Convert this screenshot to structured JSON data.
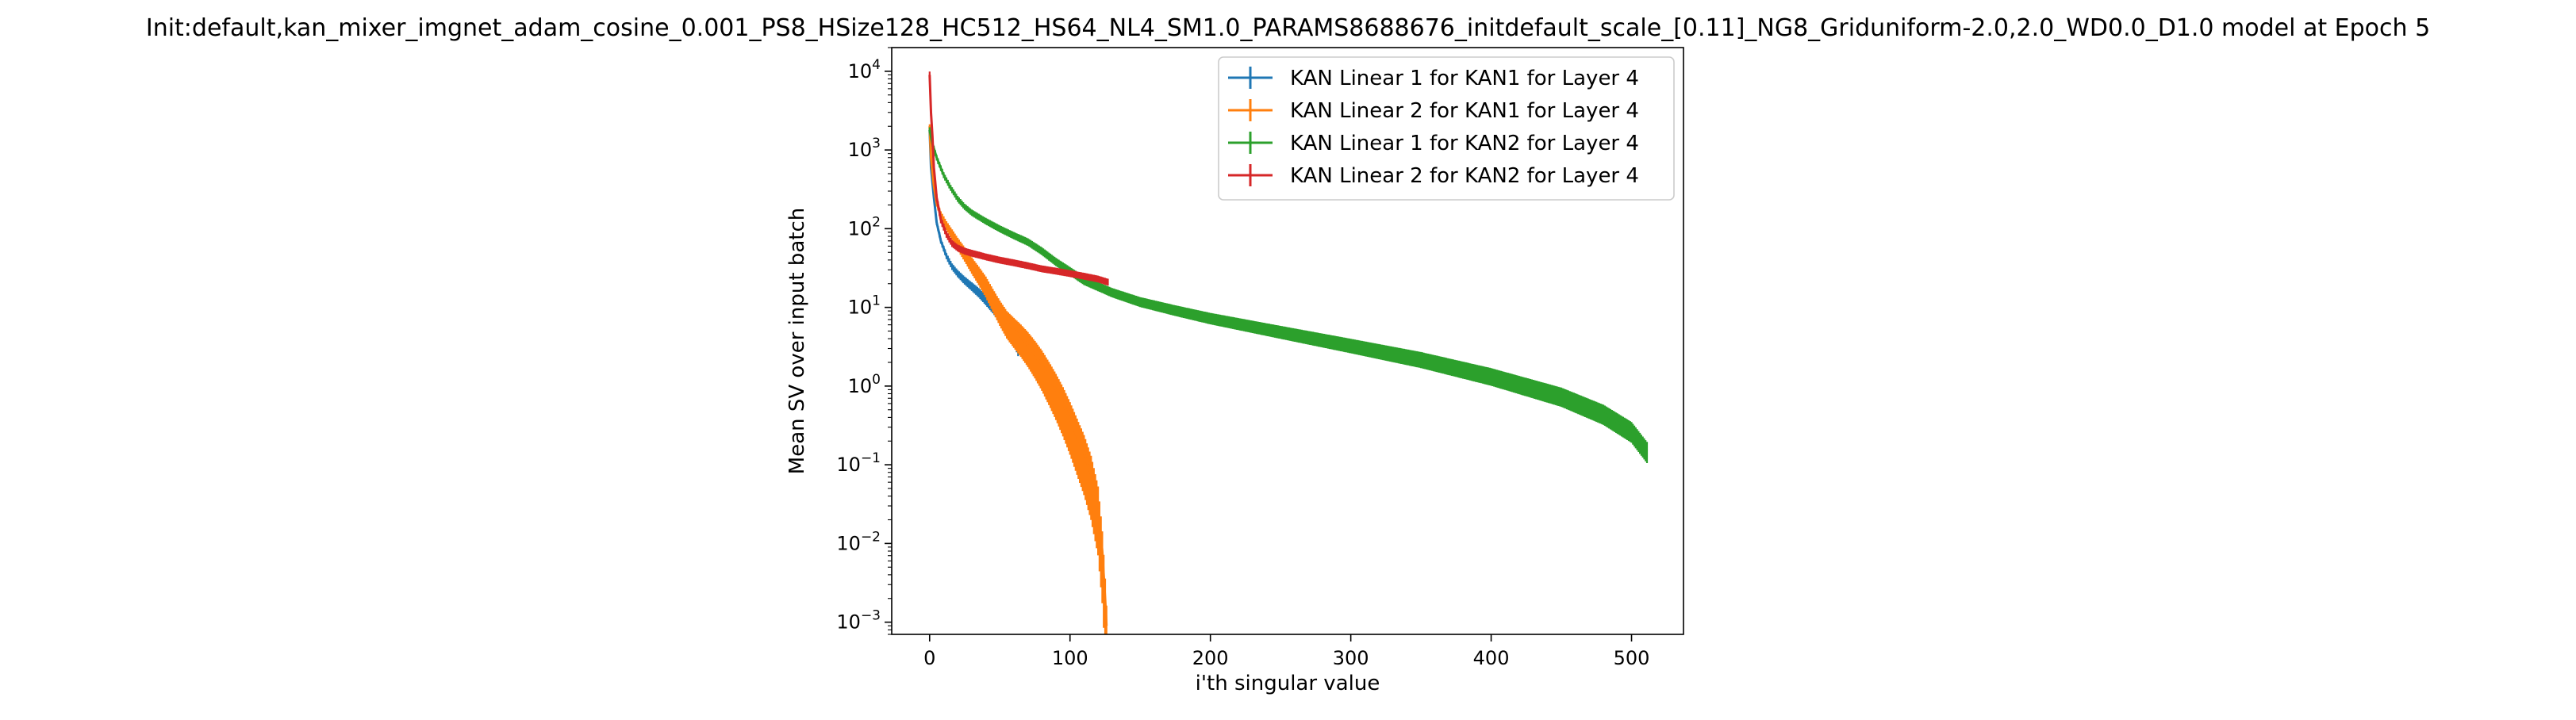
{
  "chart_data": {
    "type": "line",
    "title": "Init:default,kan_mixer_imgnet_adam_cosine_0.001_PS8_HSize128_HC512_HS64_NL4_SM1.0_PARAMS8688676_initdefault_scale_[0.11]_NG8_Griduniform-2.0,2.0_WD0.0_D1.0 model at Epoch 5",
    "xlabel": "i'th singular value",
    "ylabel": "Mean SV over input batch",
    "xlim": [
      -27,
      537
    ],
    "ylim": [
      0.0007,
      20000
    ],
    "yscale": "log",
    "x_ticks": [
      0,
      100,
      200,
      300,
      400,
      500
    ],
    "y_ticks": [
      {
        "base": "10",
        "exp": "−3",
        "value": 0.001
      },
      {
        "base": "10",
        "exp": "−2",
        "value": 0.01
      },
      {
        "base": "10",
        "exp": "−1",
        "value": 0.1
      },
      {
        "base": "10",
        "exp": "0",
        "value": 1
      },
      {
        "base": "10",
        "exp": "1",
        "value": 10
      },
      {
        "base": "10",
        "exp": "2",
        "value": 100
      },
      {
        "base": "10",
        "exp": "3",
        "value": 1000
      },
      {
        "base": "10",
        "exp": "4",
        "value": 10000
      }
    ],
    "grid": false,
    "legend_position": "top-right",
    "series": [
      {
        "name": "KAN Linear 1 for KAN1 for Layer 4",
        "color": "#1f77b4",
        "points": [
          [
            0,
            1800
          ],
          [
            1,
            600
          ],
          [
            3,
            250
          ],
          [
            5,
            120
          ],
          [
            8,
            70
          ],
          [
            12,
            45
          ],
          [
            16,
            33
          ],
          [
            20,
            27
          ],
          [
            25,
            22
          ],
          [
            30,
            18.5
          ],
          [
            35,
            15.5
          ],
          [
            40,
            12.5
          ],
          [
            45,
            10
          ],
          [
            50,
            7.8
          ],
          [
            55,
            5.8
          ],
          [
            60,
            4.2
          ],
          [
            63,
            3.0
          ]
        ],
        "err_frac": [
          0.06,
          0.2
        ]
      },
      {
        "name": "KAN Linear 2 for KAN1 for Layer 4",
        "color": "#ff7f0e",
        "points": [
          [
            0,
            2000
          ],
          [
            1,
            800
          ],
          [
            3,
            350
          ],
          [
            5,
            210
          ],
          [
            8,
            150
          ],
          [
            12,
            110
          ],
          [
            16,
            85
          ],
          [
            20,
            65
          ],
          [
            25,
            48
          ],
          [
            30,
            35
          ],
          [
            35,
            26
          ],
          [
            40,
            19
          ],
          [
            45,
            13
          ],
          [
            50,
            9
          ],
          [
            55,
            6.5
          ],
          [
            60,
            5.2
          ],
          [
            65,
            4.2
          ],
          [
            70,
            3.3
          ],
          [
            75,
            2.5
          ],
          [
            80,
            1.85
          ],
          [
            85,
            1.3
          ],
          [
            90,
            0.9
          ],
          [
            95,
            0.6
          ],
          [
            100,
            0.38
          ],
          [
            105,
            0.23
          ],
          [
            110,
            0.14
          ],
          [
            115,
            0.075
          ],
          [
            120,
            0.03
          ],
          [
            123,
            0.008
          ],
          [
            125,
            0.002
          ],
          [
            126,
            0.0009
          ]
        ],
        "err_frac": [
          0.06,
          0.8
        ]
      },
      {
        "name": "KAN Linear 1 for KAN2 for Layer 4",
        "color": "#2ca02c",
        "points": [
          [
            0,
            1800
          ],
          [
            2,
            1200
          ],
          [
            5,
            800
          ],
          [
            10,
            480
          ],
          [
            15,
            330
          ],
          [
            20,
            240
          ],
          [
            25,
            190
          ],
          [
            30,
            160
          ],
          [
            40,
            125
          ],
          [
            50,
            100
          ],
          [
            60,
            82
          ],
          [
            70,
            68
          ],
          [
            80,
            52
          ],
          [
            90,
            38
          ],
          [
            100,
            29
          ],
          [
            110,
            22
          ],
          [
            120,
            18.5
          ],
          [
            130,
            15.5
          ],
          [
            150,
            11.8
          ],
          [
            175,
            9.2
          ],
          [
            200,
            7.3
          ],
          [
            250,
            4.9
          ],
          [
            300,
            3.3
          ],
          [
            350,
            2.2
          ],
          [
            400,
            1.35
          ],
          [
            450,
            0.75
          ],
          [
            480,
            0.45
          ],
          [
            500,
            0.27
          ],
          [
            511,
            0.15
          ]
        ],
        "err_frac": [
          0.08,
          0.3
        ]
      },
      {
        "name": "KAN Linear 2 for KAN2 for Layer 4",
        "color": "#d62728",
        "points": [
          [
            0,
            9000
          ],
          [
            1,
            3000
          ],
          [
            2,
            1500
          ],
          [
            3,
            600
          ],
          [
            5,
            250
          ],
          [
            8,
            130
          ],
          [
            12,
            85
          ],
          [
            16,
            65
          ],
          [
            20,
            57
          ],
          [
            25,
            52
          ],
          [
            30,
            49
          ],
          [
            40,
            44
          ],
          [
            50,
            40
          ],
          [
            60,
            37
          ],
          [
            70,
            34
          ],
          [
            80,
            31
          ],
          [
            90,
            29
          ],
          [
            100,
            27
          ],
          [
            110,
            25
          ],
          [
            120,
            23
          ],
          [
            127,
            21
          ]
        ],
        "err_frac": [
          0.1,
          0.1
        ]
      }
    ]
  }
}
